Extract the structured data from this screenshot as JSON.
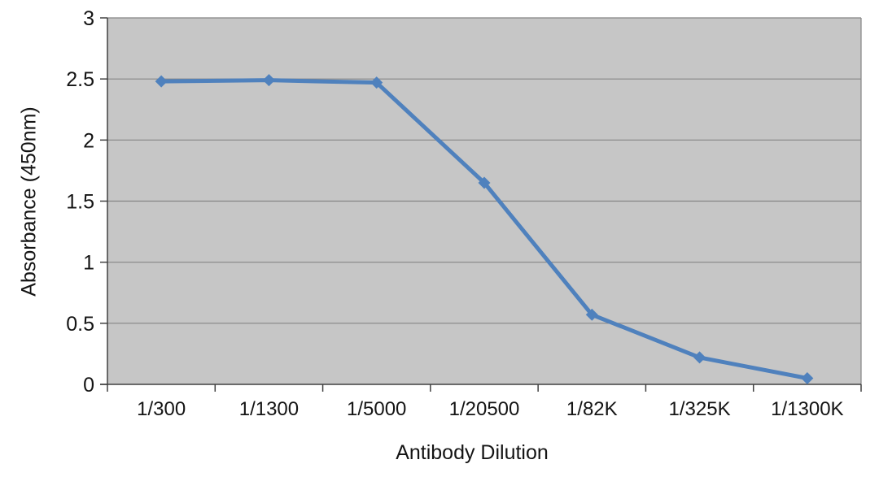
{
  "chart_data": {
    "type": "line",
    "categories": [
      "1/300",
      "1/1300",
      "1/5000",
      "1/20500",
      "1/82K",
      "1/325K",
      "1/1300K"
    ],
    "values": [
      2.48,
      2.49,
      2.47,
      1.65,
      0.57,
      0.22,
      0.05
    ],
    "xlabel": "Antibody Dilution",
    "ylabel": "Absorbance (450nm)",
    "ylim": [
      0,
      3
    ],
    "ytick_values": [
      0,
      0.5,
      1,
      1.5,
      2,
      2.5,
      3
    ],
    "ytick_labels": [
      "0",
      "0.5",
      "1",
      "1.5",
      "2",
      "2.5",
      "3"
    ],
    "grid": "horizontal",
    "legend": "none",
    "marker_shape": "diamond",
    "colors": {
      "line": "#4f81bd",
      "marker": "#4f81bd",
      "plot_background": "#c6c6c6",
      "gridline": "#858585",
      "axis": "#404040",
      "tick_text": "#141414",
      "page_background": "#ffffff"
    }
  }
}
